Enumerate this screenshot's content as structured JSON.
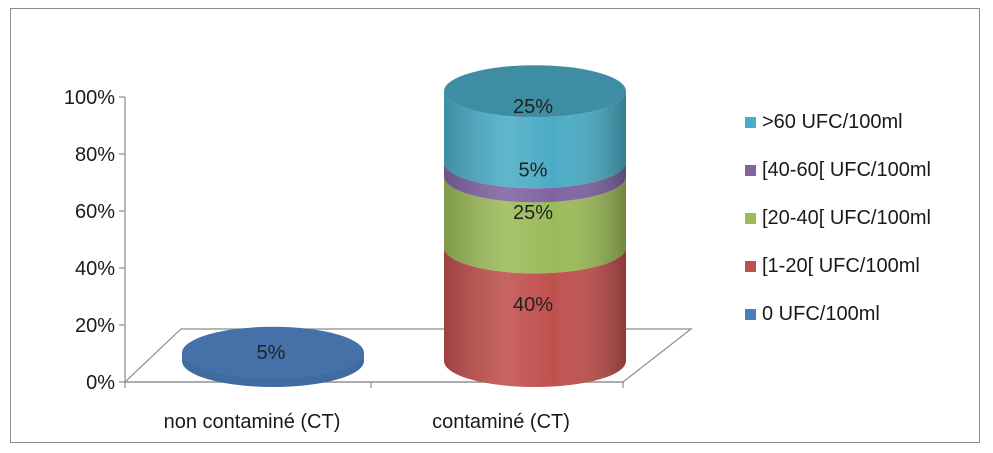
{
  "chart_data": {
    "type": "bar",
    "style": "3d-cylinder-stacked-percent",
    "categories": [
      "non contaminé (CT)",
      "contaminé (CT)"
    ],
    "ylim": [
      0,
      100
    ],
    "yticks": [
      "0%",
      "20%",
      "40%",
      "60%",
      "80%",
      "100%"
    ],
    "legend_position": "right",
    "series": [
      {
        "name": "0 UFC/100ml",
        "values": [
          5,
          0
        ],
        "labels": [
          "5%",
          ""
        ],
        "color": "#4a7ebb"
      },
      {
        "name": "[1-20[ UFC/100ml",
        "values": [
          0,
          40
        ],
        "labels": [
          "",
          "40%"
        ],
        "color": "#c0504d"
      },
      {
        "name": "[20-40[ UFC/100ml",
        "values": [
          0,
          25
        ],
        "labels": [
          "",
          "25%"
        ],
        "color": "#9bbb59"
      },
      {
        "name": "[40-60[ UFC/100ml",
        "values": [
          0,
          5
        ],
        "labels": [
          "",
          "5%"
        ],
        "color": "#8064a2"
      },
      {
        "name": ">60 UFC/100ml",
        "values": [
          0,
          25
        ],
        "labels": [
          "",
          "25%"
        ],
        "color": "#4bacc6"
      }
    ]
  }
}
